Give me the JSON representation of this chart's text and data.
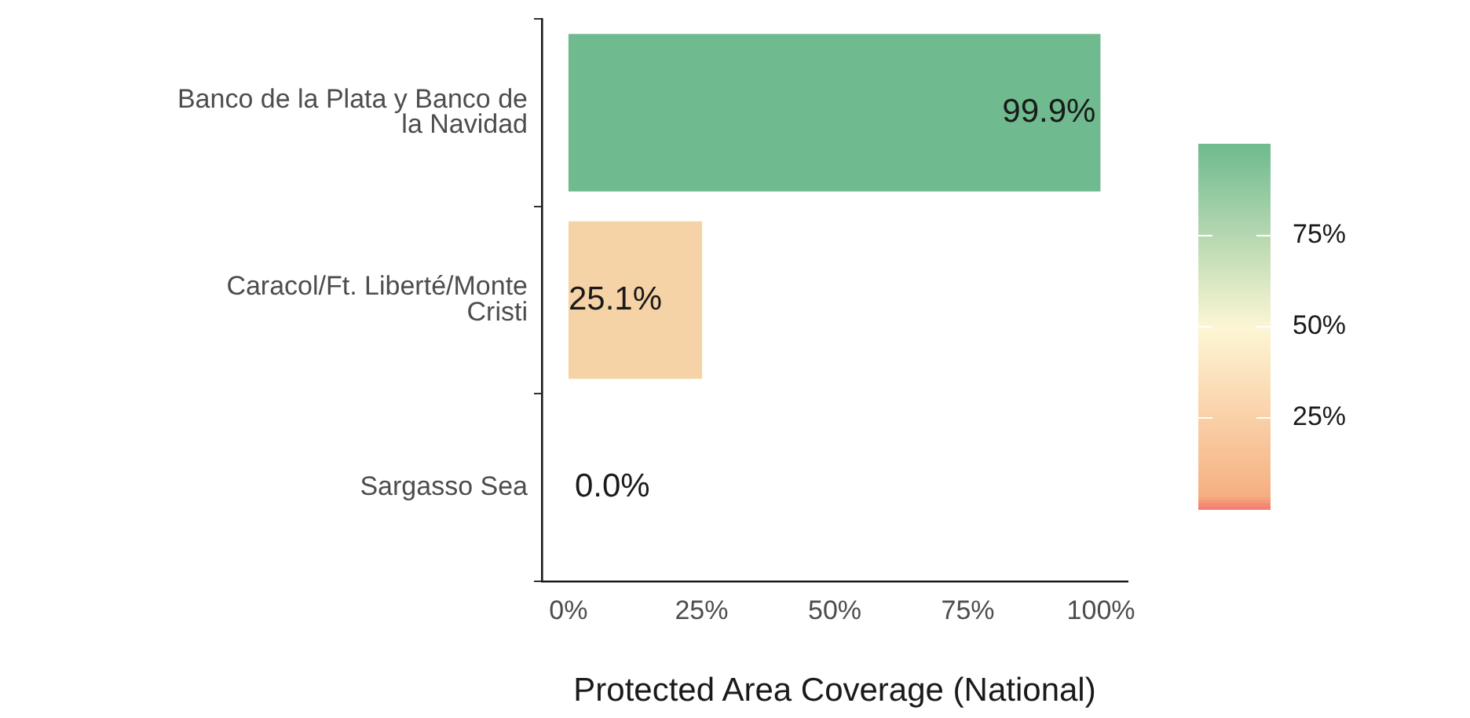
{
  "chart_data": {
    "type": "bar",
    "orientation": "horizontal",
    "categories": [
      "Banco de la Plata y Banco de la Navidad",
      "Caracol/Ft. Liberté/Monte Cristi",
      "Sargasso Sea"
    ],
    "values": [
      99.9,
      25.1,
      0.0
    ],
    "colors": [
      "#6fba8e",
      "#f6d3a6",
      "#f4a582"
    ],
    "value_labels": [
      "99.9%",
      "25.1%",
      "0.0%"
    ],
    "xlabel": "Protected Area Coverage (National)",
    "xlim": [
      -5,
      105
    ],
    "xticks": [
      {
        "value": 0,
        "label": "0%"
      },
      {
        "value": 25,
        "label": "25%"
      },
      {
        "value": 50,
        "label": "50%"
      },
      {
        "value": 75,
        "label": "75%"
      },
      {
        "value": 100,
        "label": "100%"
      }
    ],
    "clim": [
      0,
      100
    ],
    "cticks": [
      {
        "value": 25,
        "label": "25%"
      },
      {
        "value": 50,
        "label": "50%"
      },
      {
        "value": 75,
        "label": "75%"
      }
    ],
    "legend": false
  }
}
